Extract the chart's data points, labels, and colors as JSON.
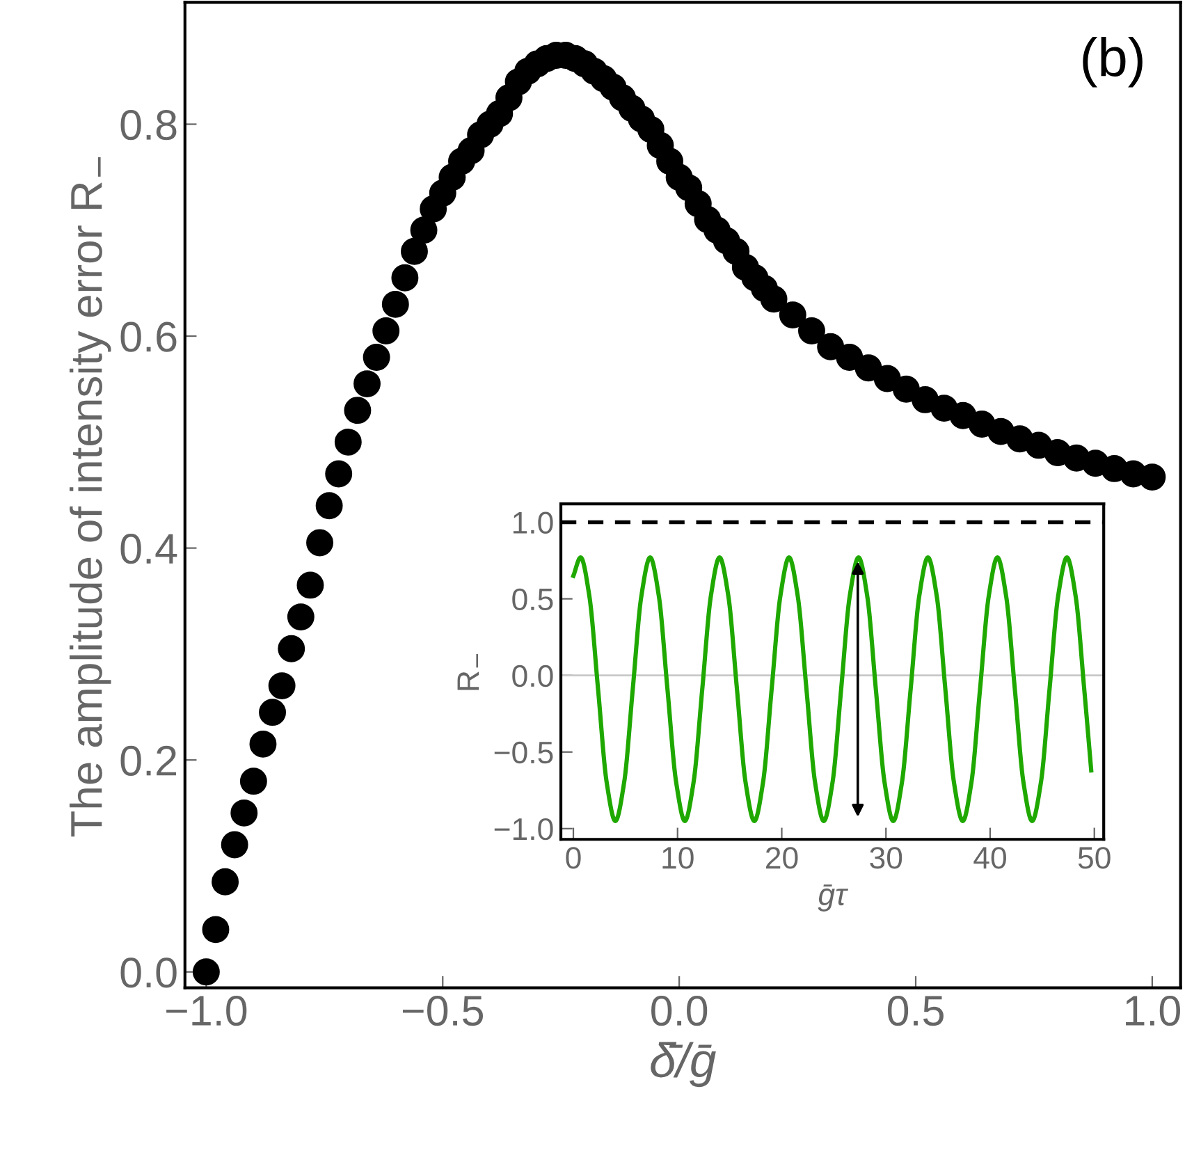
{
  "chart_data": [
    {
      "type": "scatter",
      "xlabel": "δ̄/ḡ",
      "ylabel": "The amplitude of intensity error R$_{−}$",
      "annotations": [
        "(b)"
      ],
      "marker": "circle",
      "grid": false,
      "legend": false,
      "x": [
        -1.0,
        -0.98,
        -0.96,
        -0.94,
        -0.92,
        -0.9,
        -0.88,
        -0.86,
        -0.84,
        -0.82,
        -0.8,
        -0.78,
        -0.76,
        -0.74,
        -0.72,
        -0.7,
        -0.68,
        -0.66,
        -0.64,
        -0.62,
        -0.6,
        -0.58,
        -0.56,
        -0.54,
        -0.52,
        -0.5,
        -0.48,
        -0.46,
        -0.44,
        -0.42,
        -0.4,
        -0.38,
        -0.36,
        -0.34,
        -0.32,
        -0.3,
        -0.28,
        -0.26,
        -0.24,
        -0.22,
        -0.2,
        -0.18,
        -0.16,
        -0.14,
        -0.12,
        -0.1,
        -0.08,
        -0.06,
        -0.04,
        -0.02,
        0.0,
        0.02,
        0.04,
        0.06,
        0.08,
        0.1,
        0.12,
        0.14,
        0.16,
        0.18,
        0.2,
        0.24,
        0.28,
        0.32,
        0.36,
        0.4,
        0.44,
        0.48,
        0.52,
        0.56,
        0.6,
        0.64,
        0.68,
        0.72,
        0.76,
        0.8,
        0.84,
        0.88,
        0.92,
        0.96,
        1.0
      ],
      "series": [
        {
          "color": "#000000",
          "values": [
            0.0,
            0.04,
            0.085,
            0.12,
            0.15,
            0.18,
            0.215,
            0.245,
            0.27,
            0.305,
            0.335,
            0.365,
            0.405,
            0.44,
            0.47,
            0.5,
            0.53,
            0.555,
            0.58,
            0.605,
            0.63,
            0.655,
            0.68,
            0.7,
            0.72,
            0.735,
            0.75,
            0.765,
            0.775,
            0.79,
            0.8,
            0.81,
            0.825,
            0.84,
            0.85,
            0.857,
            0.862,
            0.865,
            0.865,
            0.862,
            0.857,
            0.85,
            0.843,
            0.835,
            0.825,
            0.815,
            0.805,
            0.795,
            0.78,
            0.765,
            0.75,
            0.74,
            0.725,
            0.71,
            0.7,
            0.69,
            0.68,
            0.665,
            0.655,
            0.645,
            0.635,
            0.62,
            0.605,
            0.59,
            0.58,
            0.57,
            0.56,
            0.55,
            0.54,
            0.532,
            0.525,
            0.517,
            0.51,
            0.503,
            0.497,
            0.49,
            0.485,
            0.48,
            0.475,
            0.47,
            0.467
          ]
        }
      ],
      "xlim": [
        -1.045,
        1.06
      ],
      "ylim": [
        -0.015,
        0.915
      ],
      "xticks": [
        {
          "value": -1.0,
          "label": "−1.0"
        },
        {
          "value": -0.5,
          "label": "−0.5"
        },
        {
          "value": 0.0,
          "label": "0.0"
        },
        {
          "value": 0.5,
          "label": "0.5"
        },
        {
          "value": 1.0,
          "label": "1.0"
        }
      ],
      "yticks": [
        {
          "value": 0.0,
          "label": "0.0"
        },
        {
          "value": 0.2,
          "label": "0.2"
        },
        {
          "value": 0.4,
          "label": "0.4"
        },
        {
          "value": 0.6,
          "label": "0.6"
        },
        {
          "value": 0.8,
          "label": "0.8"
        }
      ]
    },
    {
      "type": "line",
      "xlabel": "ḡτ",
      "ylabel": "R$_{−}$",
      "grid": false,
      "legend": false,
      "marker": "none",
      "line_style": "solid",
      "x": [
        0,
        0.7,
        1.53,
        2.37,
        3.2,
        4.03,
        4.87,
        5.7,
        6.53,
        7.37,
        8.2,
        9.03,
        9.87,
        10.7,
        11.53,
        12.37,
        13.2,
        14.03,
        14.87,
        15.7,
        16.53,
        17.37,
        18.2,
        19.03,
        19.87,
        20.7,
        21.53,
        22.37,
        23.2,
        24.03,
        24.87,
        25.7,
        26.53,
        27.37,
        28.2,
        29.03,
        29.87,
        30.7,
        31.53,
        32.37,
        33.2,
        34.03,
        34.87,
        35.7,
        36.53,
        37.37,
        38.2,
        39.03,
        39.87,
        40.7,
        41.53,
        42.37,
        43.2,
        44.03,
        44.87,
        45.7,
        46.53,
        47.37,
        48.2,
        49.03,
        49.7
      ],
      "series": [
        {
          "color": "#1fa800",
          "values": [
            0.65,
            0.77,
            0.52,
            -0.09,
            -0.7,
            -0.95,
            -0.7,
            -0.09,
            0.52,
            0.77,
            0.52,
            -0.09,
            -0.7,
            -0.95,
            -0.7,
            -0.09,
            0.52,
            0.77,
            0.52,
            -0.09,
            -0.7,
            -0.95,
            -0.7,
            -0.09,
            0.52,
            0.77,
            0.52,
            -0.09,
            -0.7,
            -0.95,
            -0.7,
            -0.09,
            0.52,
            0.77,
            0.52,
            -0.09,
            -0.7,
            -0.95,
            -0.7,
            -0.09,
            0.52,
            0.77,
            0.52,
            -0.09,
            -0.7,
            -0.95,
            -0.7,
            -0.09,
            0.52,
            0.77,
            0.52,
            -0.09,
            -0.7,
            -0.95,
            -0.7,
            -0.09,
            0.52,
            0.77,
            0.52,
            -0.09,
            -0.62
          ]
        }
      ],
      "ref_lines": [
        {
          "axis": "y",
          "value": 1.0,
          "color": "#000000",
          "line_style": "dashed"
        },
        {
          "axis": "y",
          "value": 0.0,
          "color": "#c8c8c8",
          "line_style": "solid"
        }
      ],
      "xlim": [
        -1.2,
        50.9
      ],
      "ylim": [
        -1.07,
        1.12
      ],
      "xticks": [
        0,
        10,
        20,
        30,
        40,
        50
      ],
      "yticks": [
        {
          "value": -1.0,
          "label": "−1.0"
        },
        {
          "value": -0.5,
          "label": "−0.5"
        },
        {
          "value": 0.0,
          "label": "0.0"
        },
        {
          "value": 0.5,
          "label": "0.5"
        },
        {
          "value": 1.0,
          "label": "1.0"
        }
      ]
    }
  ]
}
